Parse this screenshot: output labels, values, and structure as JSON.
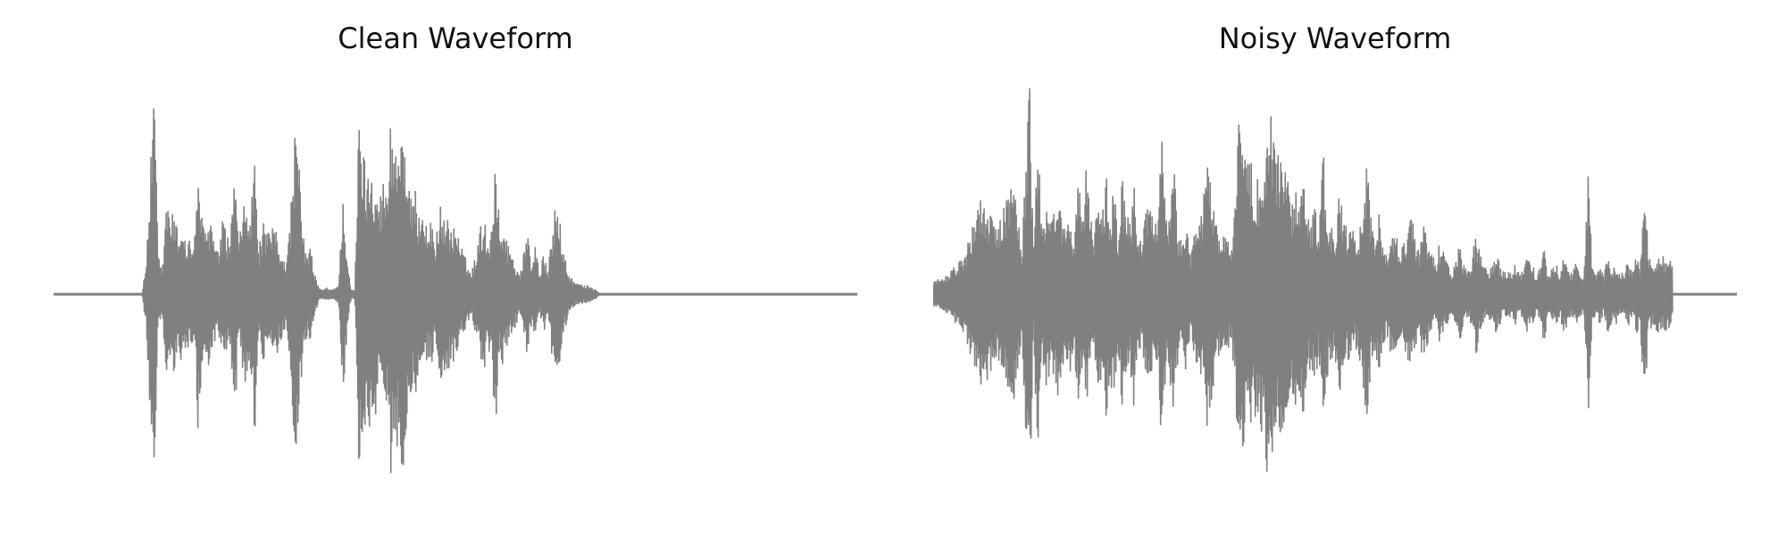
{
  "colors": {
    "waveform": "#808080",
    "background": "#ffffff",
    "title_text": "#111111"
  },
  "chart_data": [
    {
      "type": "line",
      "title": "Clean Waveform",
      "xlabel": "",
      "ylabel": "",
      "axes_visible": false,
      "grid": false,
      "xlim": [
        0,
        1
      ],
      "ylim": [
        -1,
        1
      ],
      "series": [
        {
          "x": [
            0.0,
            0.11,
            0.115,
            0.12,
            0.125,
            0.13,
            0.135,
            0.14,
            0.145,
            0.15,
            0.155,
            0.16,
            0.165,
            0.17,
            0.175,
            0.18,
            0.185,
            0.19,
            0.195,
            0.2,
            0.205,
            0.21,
            0.215,
            0.22,
            0.225,
            0.23,
            0.235,
            0.24,
            0.245,
            0.25,
            0.255,
            0.26,
            0.265,
            0.27,
            0.275,
            0.28,
            0.285,
            0.29,
            0.295,
            0.3,
            0.305,
            0.31,
            0.315,
            0.32,
            0.325,
            0.33,
            0.335,
            0.34,
            0.345,
            0.35,
            0.355,
            0.36,
            0.365,
            0.37,
            0.375,
            0.38,
            0.385,
            0.39,
            0.395,
            0.4,
            0.405,
            0.41,
            0.415,
            0.42,
            0.425,
            0.43,
            0.435,
            0.44,
            0.445,
            0.45,
            0.455,
            0.46,
            0.465,
            0.47,
            0.475,
            0.48,
            0.485,
            0.49,
            0.495,
            0.5,
            0.505,
            0.51,
            0.515,
            0.52,
            0.525,
            0.53,
            0.535,
            0.54,
            0.545,
            0.55,
            0.555,
            0.56,
            0.565,
            0.57,
            0.575,
            0.58,
            0.585,
            0.59,
            0.595,
            0.6,
            0.605,
            0.61,
            0.615,
            0.62,
            0.625,
            0.63,
            0.635,
            0.64,
            0.645,
            0.65,
            0.655,
            0.66,
            0.665,
            0.67,
            0.675,
            0.68,
            0.685,
            0.69,
            0.695,
            0.7,
            0.705,
            0.71,
            0.715,
            0.72,
            0.725,
            0.73,
            0.735,
            0.74,
            0.745,
            0.75,
            0.755,
            0.76,
            0.765,
            0.77,
            0.775,
            0.78,
            0.785,
            0.79,
            0.795,
            0.8,
            0.805,
            0.81,
            0.815,
            0.82,
            0.825,
            0.83,
            0.835,
            0.84,
            0.845,
            0.85,
            0.855,
            0.86,
            0.865,
            0.87,
            0.875,
            0.88,
            0.885,
            0.89,
            0.895,
            0.9,
            1.0
          ],
          "envelope": [
            0.0,
            0.0,
            0.15,
            0.55,
            1.0,
            0.2,
            0.1,
            0.45,
            0.4,
            0.38,
            0.3,
            0.35,
            0.25,
            0.28,
            0.22,
            0.68,
            0.34,
            0.3,
            0.4,
            0.25,
            0.2,
            0.35,
            0.3,
            0.25,
            0.68,
            0.22,
            0.4,
            0.45,
            0.35,
            0.7,
            0.2,
            0.35,
            0.3,
            0.28,
            0.35,
            0.25,
            0.2,
            0.15,
            0.4,
            0.8,
            0.65,
            0.3,
            0.2,
            0.22,
            0.1,
            0.03,
            0.02,
            0.03,
            0.02,
            0.03,
            0.05,
            0.5,
            0.2,
            0.02,
            0.02,
            0.9,
            0.7,
            0.6,
            0.65,
            0.6,
            0.45,
            0.55,
            0.5,
            0.9,
            0.7,
            0.75,
            0.92,
            0.55,
            0.45,
            0.5,
            0.4,
            0.45,
            0.3,
            0.35,
            0.25,
            0.45,
            0.35,
            0.4,
            0.3,
            0.35,
            0.25,
            0.2,
            0.15,
            0.1,
            0.2,
            0.3,
            0.4,
            0.25,
            0.35,
            0.7,
            0.3,
            0.35,
            0.25,
            0.2,
            0.15,
            0.1,
            0.2,
            0.3,
            0.15,
            0.25,
            0.1,
            0.2,
            0.1,
            0.3,
            0.45,
            0.35,
            0.2,
            0.1,
            0.08,
            0.05,
            0.05,
            0.04,
            0.04,
            0.03,
            0.02,
            0.0,
            0.0,
            0.0,
            0.0,
            0.0,
            0.0,
            0.0,
            0.0,
            0.0,
            0.0,
            0.0,
            0.0,
            0.0,
            0.0,
            0.0,
            0.0,
            0.0,
            0.0,
            0.0,
            0.0,
            0.0,
            0.0,
            0.0,
            0.0,
            0.0,
            0.0,
            0.0,
            0.0,
            0.0,
            0.0,
            0.0,
            0.0,
            0.0,
            0.0,
            0.0,
            0.0,
            0.0,
            0.0,
            0.0,
            0.0,
            0.0,
            0.0,
            0.0,
            0.0,
            0.0,
            0.0
          ]
        }
      ]
    },
    {
      "type": "line",
      "title": "Noisy Waveform",
      "xlabel": "",
      "ylabel": "",
      "axes_visible": false,
      "grid": false,
      "xlim": [
        0,
        1
      ],
      "ylim": [
        -1,
        1
      ],
      "series": [
        {
          "x": [
            0.0,
            0.02,
            0.04,
            0.06,
            0.08,
            0.1,
            0.11,
            0.115,
            0.12,
            0.125,
            0.13,
            0.135,
            0.14,
            0.145,
            0.15,
            0.155,
            0.16,
            0.165,
            0.17,
            0.175,
            0.18,
            0.185,
            0.19,
            0.195,
            0.2,
            0.205,
            0.21,
            0.215,
            0.22,
            0.225,
            0.23,
            0.235,
            0.24,
            0.245,
            0.25,
            0.255,
            0.26,
            0.265,
            0.27,
            0.275,
            0.28,
            0.285,
            0.29,
            0.295,
            0.3,
            0.305,
            0.31,
            0.315,
            0.32,
            0.325,
            0.33,
            0.335,
            0.34,
            0.345,
            0.35,
            0.355,
            0.36,
            0.365,
            0.37,
            0.375,
            0.38,
            0.385,
            0.39,
            0.395,
            0.4,
            0.405,
            0.41,
            0.415,
            0.42,
            0.425,
            0.43,
            0.435,
            0.44,
            0.445,
            0.45,
            0.455,
            0.46,
            0.465,
            0.47,
            0.475,
            0.48,
            0.485,
            0.49,
            0.495,
            0.5,
            0.505,
            0.51,
            0.515,
            0.52,
            0.525,
            0.53,
            0.535,
            0.54,
            0.545,
            0.55,
            0.555,
            0.56,
            0.565,
            0.57,
            0.575,
            0.58,
            0.585,
            0.59,
            0.595,
            0.6,
            0.605,
            0.61,
            0.615,
            0.62,
            0.625,
            0.63,
            0.635,
            0.64,
            0.645,
            0.65,
            0.655,
            0.66,
            0.665,
            0.67,
            0.675,
            0.68,
            0.685,
            0.69,
            0.695,
            0.7,
            0.705,
            0.71,
            0.715,
            0.72,
            0.725,
            0.73,
            0.735,
            0.74,
            0.745,
            0.75,
            0.755,
            0.76,
            0.765,
            0.77,
            0.775,
            0.78,
            0.785,
            0.79,
            0.795,
            0.8,
            0.805,
            0.81,
            0.815,
            0.82,
            0.825,
            0.83,
            0.835,
            0.84,
            0.845,
            0.85,
            0.855,
            0.86,
            0.865,
            0.87,
            0.875,
            0.88,
            0.885,
            0.89,
            0.895,
            0.9,
            0.92,
            0.94,
            0.96,
            0.98,
            1.0
          ],
          "envelope": [
            0.05,
            0.1,
            0.2,
            0.5,
            0.3,
            0.6,
            0.2,
            0.65,
            1.0,
            0.15,
            0.9,
            0.3,
            0.45,
            0.4,
            0.38,
            0.55,
            0.35,
            0.3,
            0.4,
            0.25,
            0.6,
            0.35,
            0.6,
            0.4,
            0.25,
            0.55,
            0.35,
            0.6,
            0.4,
            0.55,
            0.25,
            0.6,
            0.4,
            0.35,
            0.55,
            0.3,
            0.25,
            0.4,
            0.45,
            0.3,
            0.4,
            0.8,
            0.35,
            0.45,
            0.6,
            0.3,
            0.25,
            0.4,
            0.2,
            0.3,
            0.45,
            0.35,
            0.7,
            0.55,
            0.4,
            0.3,
            0.25,
            0.35,
            0.2,
            0.4,
            0.9,
            0.75,
            0.7,
            0.65,
            0.6,
            0.55,
            0.7,
            0.85,
            0.92,
            0.75,
            0.7,
            0.8,
            0.6,
            0.45,
            0.55,
            0.45,
            0.6,
            0.4,
            0.35,
            0.45,
            0.3,
            0.7,
            0.4,
            0.35,
            0.3,
            0.55,
            0.4,
            0.3,
            0.35,
            0.25,
            0.3,
            0.45,
            0.65,
            0.35,
            0.3,
            0.4,
            0.25,
            0.2,
            0.3,
            0.35,
            0.2,
            0.25,
            0.3,
            0.4,
            0.25,
            0.2,
            0.35,
            0.25,
            0.2,
            0.15,
            0.25,
            0.2,
            0.15,
            0.1,
            0.15,
            0.25,
            0.15,
            0.1,
            0.15,
            0.3,
            0.2,
            0.15,
            0.1,
            0.15,
            0.2,
            0.15,
            0.1,
            0.12,
            0.1,
            0.15,
            0.1,
            0.12,
            0.2,
            0.15,
            0.1,
            0.12,
            0.25,
            0.1,
            0.12,
            0.15,
            0.1,
            0.2,
            0.12,
            0.1,
            0.15,
            0.12,
            0.1,
            0.6,
            0.12,
            0.1,
            0.15,
            0.1,
            0.2,
            0.12,
            0.15,
            0.1,
            0.12,
            0.15,
            0.1,
            0.2,
            0.15,
            0.6,
            0.2,
            0.15,
            0.2,
            0.15
          ]
        }
      ]
    }
  ]
}
